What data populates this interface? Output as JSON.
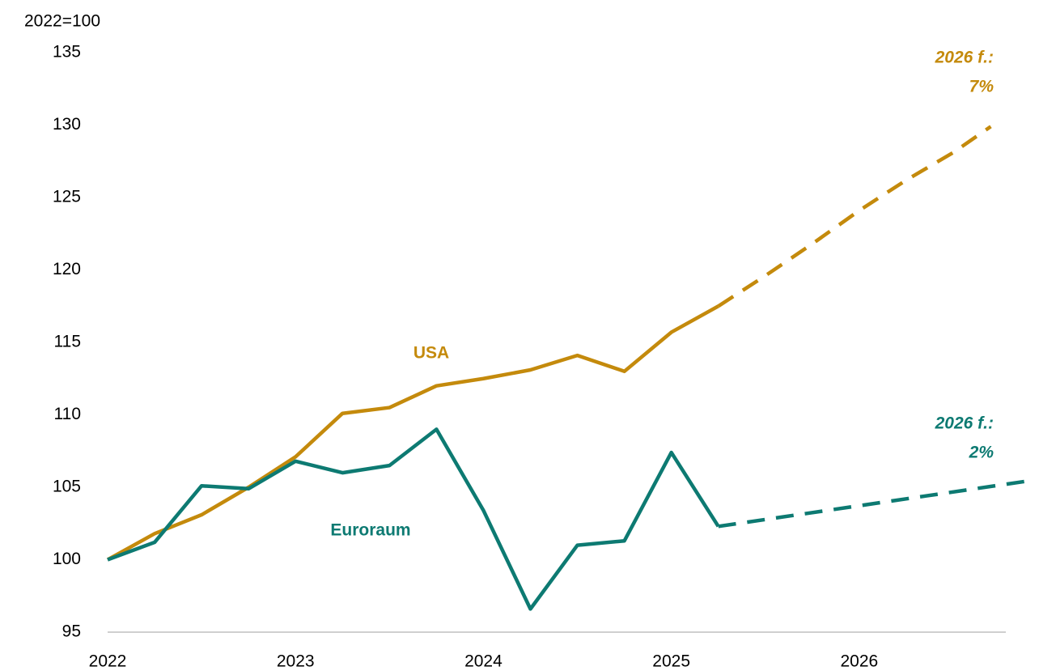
{
  "chart_data": {
    "type": "line",
    "y_label": "2022=100",
    "x": [
      2022,
      2022.25,
      2022.5,
      2022.75,
      2023,
      2023.25,
      2023.5,
      2023.75,
      2024,
      2024.25,
      2024.5,
      2024.75,
      2025,
      2025.25
    ],
    "series": [
      {
        "name": "USA",
        "color": "#c48a0c",
        "values": [
          100,
          101.8,
          103.1,
          105.0,
          107.1,
          110.1,
          110.5,
          112.0,
          112.5,
          113.1,
          114.1,
          113.0,
          115.7,
          117.5
        ],
        "forecast_x": [
          2025.25,
          2025.5,
          2025.75,
          2026,
          2026.25,
          2026.5,
          2026.7
        ],
        "forecast_values": [
          117.5,
          119.6,
          121.8,
          124.1,
          126.2,
          128.1,
          129.9
        ],
        "forecast_label": [
          "2026 f.:",
          "7%"
        ]
      },
      {
        "name": "Euroraum",
        "color": "#0d7a72",
        "values": [
          100,
          101.2,
          105.1,
          104.9,
          106.8,
          106.0,
          106.5,
          109.0,
          103.4,
          96.6,
          101.0,
          101.3,
          107.4,
          102.3
        ],
        "forecast_x": [
          2025.25,
          2026.88
        ],
        "forecast_values": [
          102.3,
          105.4
        ],
        "forecast_label": [
          "2026 f.:",
          "2%"
        ]
      }
    ],
    "xlim": [
      2022,
      2026.78
    ],
    "xticks": [
      2022,
      2023,
      2024,
      2025,
      2026
    ],
    "ylim": [
      95,
      135
    ],
    "yticks": [
      95,
      100,
      105,
      110,
      115,
      120,
      125,
      130,
      135
    ],
    "grid": false
  }
}
